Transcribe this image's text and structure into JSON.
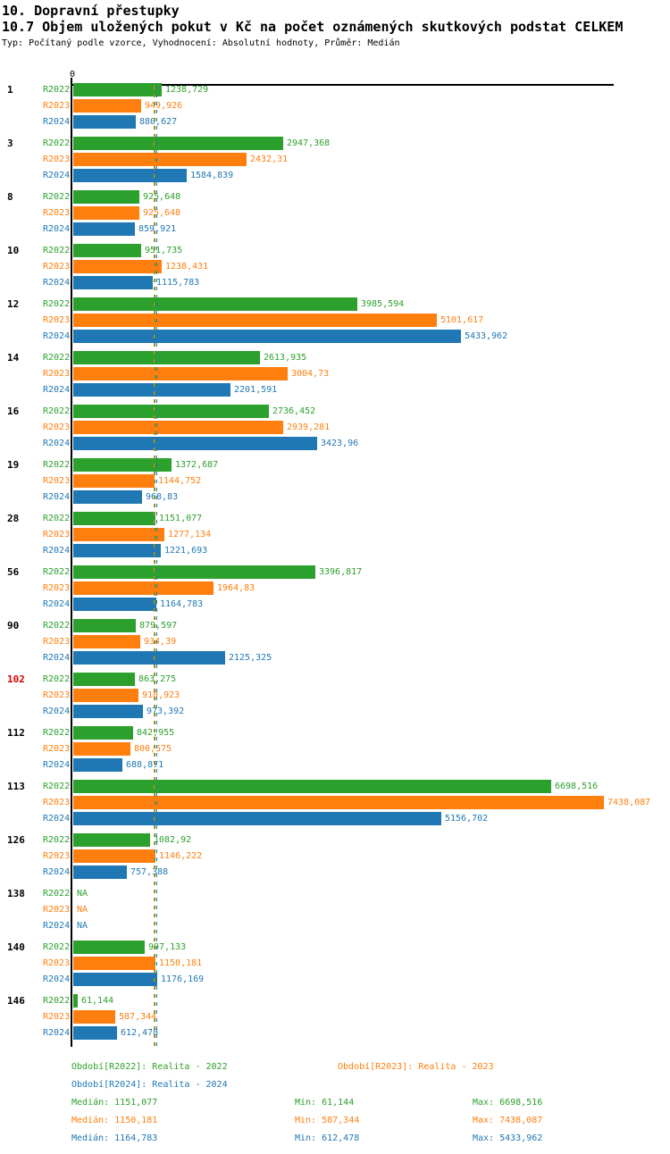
{
  "page": {
    "title_line1": "10. Dopravní přestupky",
    "title_line2": "10.7 Objem uložených pokut v Kč na počet oznámených skutkových podstat CELKEM",
    "subtitle": "Typ: Počítaný podle vzorce, Vyhodnocení: Absolutní hodnoty, Průměr: Medián"
  },
  "axis": {
    "zero_label": "0"
  },
  "colors": {
    "r2022_green": "#2ca02c",
    "r2023_orange": "#ff7f0e",
    "r2024_blue": "#1f77b4",
    "highlighted_category_red": "#dd0000",
    "axis_black": "#000000"
  },
  "chart_data": {
    "type": "bar",
    "orientation": "horizontal",
    "value_unit": "Kč",
    "categories": [
      "1",
      "3",
      "8",
      "10",
      "12",
      "14",
      "16",
      "19",
      "28",
      "56",
      "90",
      "102",
      "112",
      "113",
      "126",
      "138",
      "140",
      "146"
    ],
    "highlighted_category": "102",
    "xlim": [
      0,
      7438.087
    ],
    "grid": false,
    "series": [
      {
        "name": "R2022",
        "color": "#2ca02c",
        "values": [
          1238.729,
          2947.368,
          925.648,
          951.735,
          3985.594,
          2613.935,
          2736.452,
          1372.687,
          1151.077,
          3396.817,
          879.597,
          863.275,
          842.955,
          6698.516,
          1082.92,
          null,
          997.133,
          61.144
        ],
        "labels": [
          "1238,729",
          "2947,368",
          "925,648",
          "951,735",
          "3985,594",
          "2613,935",
          "2736,452",
          "1372,687",
          "1151,077",
          "3396,817",
          "879,597",
          "863,275",
          "842,955",
          "6698,516",
          "1082,92",
          "NA",
          "997,133",
          "61,144"
        ]
      },
      {
        "name": "R2023",
        "color": "#ff7f0e",
        "values": [
          949.926,
          2432.31,
          925.648,
          1238.431,
          5101.617,
          3004.73,
          2939.281,
          1144.752,
          1277.134,
          1964.83,
          934.39,
          918.923,
          800.575,
          7438.087,
          1146.222,
          null,
          1150.181,
          587.344
        ],
        "labels": [
          "949,926",
          "2432,31",
          "925,648",
          "1238,431",
          "5101,617",
          "3004,73",
          "2939,281",
          "1144,752",
          "1277,134",
          "1964,83",
          "934,39",
          "918,923",
          "800,575",
          "7438,087",
          "1146,222",
          "NA",
          "1150,181",
          "587,344"
        ]
      },
      {
        "name": "R2024",
        "color": "#1f77b4",
        "values": [
          880.627,
          1584.839,
          859.921,
          1115.783,
          5433.962,
          2201.591,
          3423.96,
          968.83,
          1221.693,
          1164.783,
          2125.325,
          973.392,
          688.871,
          5156.702,
          757.388,
          null,
          1176.169,
          612.478
        ],
        "labels": [
          "880,627",
          "1584,839",
          "859,921",
          "1115,783",
          "5433,962",
          "2201,591",
          "3423,96",
          "968,83",
          "1221,693",
          "1164,783",
          "2125,325",
          "973,392",
          "688,871",
          "5156,702",
          "757,388",
          "NA",
          "1176,169",
          "612,478"
        ]
      }
    ],
    "medians": {
      "R2022": 1151.077,
      "R2023": 1150.181,
      "R2024": 1164.783
    },
    "stats_numeric": {
      "R2022": {
        "median": 1151.077,
        "min": 61.144,
        "max": 6698.516
      },
      "R2023": {
        "median": 1150.181,
        "min": 587.344,
        "max": 7438.087
      },
      "R2024": {
        "median": 1164.783,
        "min": 612.478,
        "max": 5433.962
      }
    }
  },
  "legend": {
    "r2022": "Období[R2022]: Realita - 2022",
    "r2023": "Období[R2023]: Realita - 2023",
    "r2024": "Období[R2024]: Realita - 2024"
  },
  "stats": [
    {
      "median": "Medián: 1151,077",
      "min": "Min: 61,144",
      "max": "Max: 6698,516"
    },
    {
      "median": "Medián: 1150,181",
      "min": "Min: 587,344",
      "max": "Max: 7438,087"
    },
    {
      "median": "Medián: 1164,783",
      "min": "Min: 612,478",
      "max": "Max: 5433,962"
    }
  ]
}
